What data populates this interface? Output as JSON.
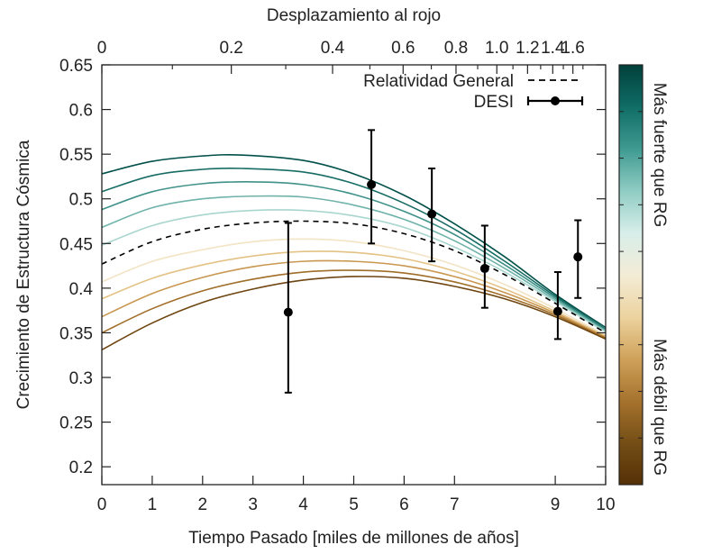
{
  "chart_data": {
    "type": "line",
    "title": "",
    "xlabel": "Tiempo Pasado [miles de millones de años]",
    "x2label": "Desplazamiento al rojo",
    "ylabel": "Crecimiento de Estructura Cósmica",
    "xlim": [
      0,
      10
    ],
    "ylim": [
      0.18,
      0.65
    ],
    "yticks": [
      0.2,
      0.25,
      0.3,
      0.35,
      0.4,
      0.45,
      0.5,
      0.55,
      0.6,
      0.65
    ],
    "xticks": [
      0,
      1,
      2,
      3,
      4,
      5,
      6,
      7,
      9,
      10
    ],
    "x2ticks": [
      0,
      0.2,
      0.4,
      0.6,
      0.8,
      1.0,
      1.2,
      1.4,
      1.6
    ],
    "x2tick_labels": [
      "0",
      "0.2",
      "0.4",
      "0.6",
      "0.8",
      "1.0",
      "1.2",
      "1.4",
      "1.6"
    ],
    "x2tick_positions_in_x_units": [
      0.0,
      2.57,
      4.58,
      5.98,
      7.03,
      7.84,
      8.45,
      8.95,
      9.35
    ],
    "x2_minor_ticks_in_x_units": [
      1.4,
      3.65,
      5.32,
      6.54,
      7.46,
      8.16,
      8.71,
      9.16,
      9.55
    ],
    "grid": false,
    "legend": {
      "position": "top-right",
      "entries": [
        {
          "label": "Relatividad General",
          "style": "dashed"
        },
        {
          "label": "DESI",
          "style": "points-errorbars"
        }
      ]
    },
    "colorbar": {
      "top_label": "Más fuerte que RG",
      "bottom_label": "Más débil que RG",
      "colors_top_to_bottom": [
        "#01403a",
        "#0f6d66",
        "#3f9a91",
        "#8fccc3",
        "#d7eeea",
        "#f3ecd6",
        "#ecd39f",
        "#cfa25a",
        "#a6732d",
        "#754e16",
        "#543005"
      ]
    },
    "series": [
      {
        "color": "#01504a",
        "x": [
          0,
          1,
          2,
          2.8,
          4,
          5,
          6,
          7,
          8,
          9,
          10
        ],
        "y": [
          0.528,
          0.542,
          0.548,
          0.549,
          0.543,
          0.528,
          0.504,
          0.472,
          0.435,
          0.393,
          0.356
        ]
      },
      {
        "color": "#176d65",
        "x": [
          0,
          1,
          2,
          2.8,
          4,
          5,
          6,
          7,
          8,
          9,
          10
        ],
        "y": [
          0.508,
          0.526,
          0.533,
          0.534,
          0.53,
          0.517,
          0.495,
          0.466,
          0.43,
          0.391,
          0.354
        ]
      },
      {
        "color": "#3f9189",
        "x": [
          0,
          1,
          2,
          3,
          4,
          5,
          6,
          7,
          8,
          9,
          10
        ],
        "y": [
          0.488,
          0.508,
          0.517,
          0.519,
          0.516,
          0.505,
          0.486,
          0.46,
          0.426,
          0.389,
          0.353
        ]
      },
      {
        "color": "#6fb3aa",
        "x": [
          0,
          1,
          2,
          3,
          4,
          5,
          6,
          7,
          8,
          9,
          10
        ],
        "y": [
          0.468,
          0.49,
          0.5,
          0.503,
          0.502,
          0.493,
          0.477,
          0.453,
          0.422,
          0.387,
          0.352
        ]
      },
      {
        "color": "#a8d6cf",
        "x": [
          0,
          1,
          2,
          3,
          4,
          5,
          6,
          7,
          8,
          9,
          10
        ],
        "y": [
          0.448,
          0.47,
          0.482,
          0.487,
          0.487,
          0.481,
          0.468,
          0.446,
          0.418,
          0.385,
          0.351
        ]
      },
      {
        "color": "#f2e4c4",
        "x": [
          0,
          1,
          2,
          3,
          4,
          5,
          6,
          7,
          8,
          9,
          10
        ],
        "y": [
          0.407,
          0.43,
          0.443,
          0.452,
          0.455,
          0.452,
          0.442,
          0.426,
          0.404,
          0.377,
          0.347
        ]
      },
      {
        "color": "#e4c285",
        "x": [
          0,
          1,
          2,
          3,
          4,
          5,
          6,
          7,
          8,
          9,
          10
        ],
        "y": [
          0.388,
          0.411,
          0.426,
          0.436,
          0.441,
          0.44,
          0.433,
          0.419,
          0.399,
          0.374,
          0.346
        ]
      },
      {
        "color": "#c9974f",
        "x": [
          0,
          1,
          2,
          3,
          4,
          5,
          6,
          7,
          8,
          9,
          10
        ],
        "y": [
          0.368,
          0.394,
          0.412,
          0.424,
          0.43,
          0.43,
          0.425,
          0.413,
          0.395,
          0.372,
          0.345
        ]
      },
      {
        "color": "#a06e28",
        "x": [
          0,
          1,
          2,
          3,
          4,
          5,
          6,
          7,
          8,
          9,
          10
        ],
        "y": [
          0.35,
          0.377,
          0.397,
          0.41,
          0.418,
          0.42,
          0.417,
          0.407,
          0.391,
          0.37,
          0.344
        ]
      },
      {
        "color": "#6e4510",
        "x": [
          0,
          1,
          2,
          3,
          4,
          5,
          6,
          7,
          8,
          9,
          10
        ],
        "y": [
          0.331,
          0.361,
          0.384,
          0.399,
          0.409,
          0.413,
          0.411,
          0.402,
          0.388,
          0.368,
          0.343
        ]
      }
    ],
    "gr_reference": {
      "label": "Relatividad General",
      "x": [
        0,
        1,
        2,
        3,
        4,
        5,
        6,
        7,
        8,
        9,
        10
      ],
      "y": [
        0.427,
        0.452,
        0.466,
        0.473,
        0.475,
        0.472,
        0.461,
        0.442,
        0.415,
        0.383,
        0.35
      ]
    },
    "desi_points": [
      {
        "x": 3.7,
        "y": 0.373,
        "ylow": 0.283,
        "yhigh": 0.473
      },
      {
        "x": 5.35,
        "y": 0.516,
        "ylow": 0.45,
        "yhigh": 0.577
      },
      {
        "x": 6.55,
        "y": 0.483,
        "ylow": 0.43,
        "yhigh": 0.534
      },
      {
        "x": 7.6,
        "y": 0.422,
        "ylow": 0.378,
        "yhigh": 0.47
      },
      {
        "x": 9.05,
        "y": 0.374,
        "ylow": 0.343,
        "yhigh": 0.418
      },
      {
        "x": 9.45,
        "y": 0.435,
        "ylow": 0.389,
        "yhigh": 0.476
      }
    ]
  }
}
